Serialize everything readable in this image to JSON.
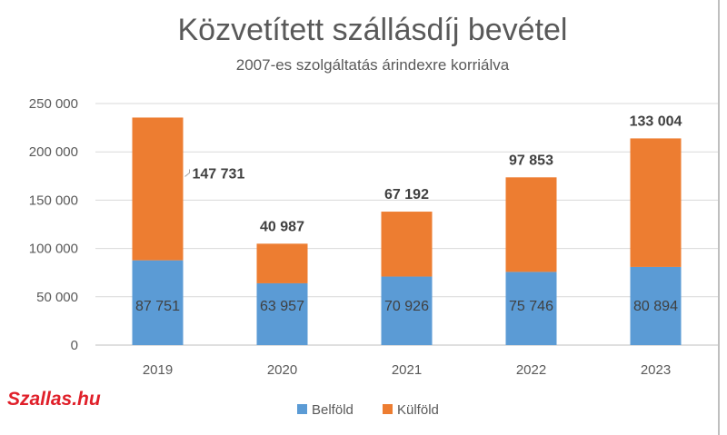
{
  "watermark": "Szallas.hu",
  "chart_data": {
    "type": "bar",
    "stacked": true,
    "title": "Közvetített szállásdíj bevétel",
    "subtitle": "2007-es szolgáltatás árindexre korriálva",
    "categories": [
      "2019",
      "2020",
      "2021",
      "2022",
      "2023"
    ],
    "series": [
      {
        "name": "Belföld",
        "color": "#5b9bd5",
        "values": [
          87751,
          63957,
          70926,
          75746,
          80894
        ]
      },
      {
        "name": "Külföld",
        "color": "#ed7d31",
        "values": [
          147731,
          40987,
          67192,
          97853,
          133004
        ]
      }
    ],
    "series_labels": {
      "Belföld": [
        "87 751",
        "63 957",
        "70 926",
        "75 746",
        "80 894"
      ],
      "Külföld": [
        "147 731",
        "40 987",
        "67 192",
        "97 853",
        "133 004"
      ]
    },
    "yticks": [
      "0",
      "50 000",
      "100 000",
      "150 000",
      "200 000",
      "250 000"
    ],
    "ylim": [
      0,
      250000
    ],
    "grid": true,
    "legend": "bottom"
  }
}
